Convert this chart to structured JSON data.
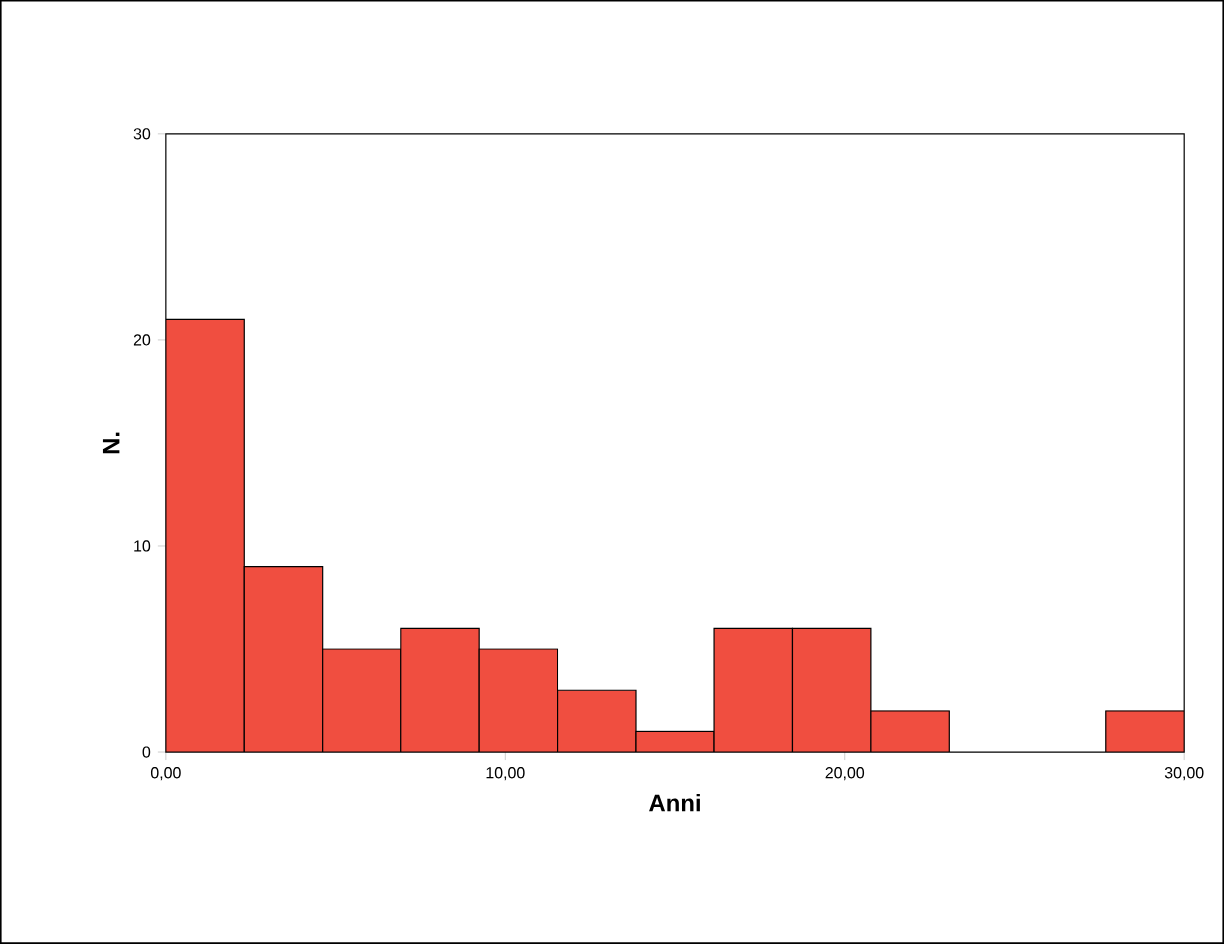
{
  "chart_data": {
    "type": "histogram",
    "xlabel": "Anni",
    "ylabel": "N.",
    "bins": [
      0,
      2.31,
      4.62,
      6.92,
      9.23,
      11.54,
      13.85,
      16.15,
      18.46,
      20.77,
      23.08,
      25.38,
      27.69,
      30
    ],
    "values": [
      21,
      9,
      5,
      6,
      5,
      3,
      1,
      6,
      6,
      2,
      0,
      0,
      2
    ],
    "color": "#f04e40",
    "xlim": [
      0,
      30
    ],
    "ylim": [
      0,
      30
    ],
    "xticks": [
      {
        "value": 0,
        "label": "0,00"
      },
      {
        "value": 10,
        "label": "10,00"
      },
      {
        "value": 20,
        "label": "20,00"
      },
      {
        "value": 30,
        "label": "30,00"
      }
    ],
    "yticks": [
      0,
      10,
      20,
      30
    ],
    "grid": false
  }
}
